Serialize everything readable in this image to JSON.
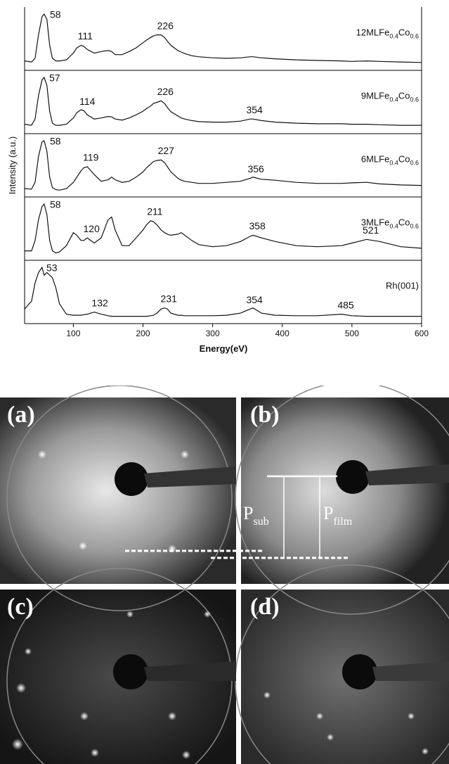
{
  "chart_data": {
    "type": "line",
    "xlabel": "Energy(eV)",
    "ylabel": "Intensity (a.u.)",
    "xlim": [
      30,
      600
    ],
    "xticks": [
      100,
      200,
      300,
      400,
      500,
      600
    ],
    "ylim": [
      0,
      1
    ],
    "x": [
      30,
      40,
      45,
      50,
      55,
      58,
      62,
      66,
      70,
      75,
      80,
      90,
      100,
      105,
      111,
      115,
      120,
      130,
      140,
      150,
      155,
      160,
      170,
      180,
      190,
      200,
      205,
      211,
      215,
      220,
      226,
      231,
      235,
      240,
      250,
      255,
      260,
      270,
      280,
      300,
      320,
      340,
      354,
      358,
      370,
      390,
      420,
      450,
      485,
      500,
      521,
      540,
      570,
      600
    ],
    "color": "#111111",
    "series": [
      {
        "name": [
          "12MLFe",
          "0.4",
          "Co",
          "0.6"
        ],
        "peaks": [
          58,
          111,
          226
        ],
        "values": [
          0.1,
          0.08,
          0.15,
          0.6,
          0.95,
          1.0,
          0.9,
          0.4,
          0.15,
          0.1,
          0.1,
          0.12,
          0.25,
          0.35,
          0.4,
          0.38,
          0.32,
          0.25,
          0.28,
          0.3,
          0.28,
          0.22,
          0.22,
          0.28,
          0.35,
          0.45,
          0.5,
          0.55,
          0.58,
          0.6,
          0.6,
          0.55,
          0.48,
          0.4,
          0.3,
          0.27,
          0.24,
          0.2,
          0.18,
          0.16,
          0.15,
          0.16,
          0.18,
          0.18,
          0.16,
          0.14,
          0.12,
          0.11,
          0.1,
          0.09,
          0.1,
          0.09,
          0.08,
          0.07
        ]
      },
      {
        "name": [
          "9MLFe",
          "0.4",
          "Co",
          "0.6"
        ],
        "peaks": [
          57,
          114,
          226,
          354
        ],
        "values": [
          0.1,
          0.08,
          0.2,
          0.65,
          0.95,
          1.0,
          0.85,
          0.35,
          0.12,
          0.08,
          0.08,
          0.1,
          0.22,
          0.32,
          0.38,
          0.36,
          0.28,
          0.2,
          0.22,
          0.25,
          0.24,
          0.2,
          0.18,
          0.22,
          0.28,
          0.35,
          0.4,
          0.45,
          0.5,
          0.52,
          0.55,
          0.5,
          0.42,
          0.34,
          0.26,
          0.22,
          0.2,
          0.17,
          0.15,
          0.14,
          0.14,
          0.16,
          0.2,
          0.2,
          0.17,
          0.14,
          0.12,
          0.11,
          0.11,
          0.1,
          0.1,
          0.09,
          0.08,
          0.08
        ]
      },
      {
        "name": [
          "6MLFe",
          "0.4",
          "Co",
          "0.6"
        ],
        "peaks": [
          58,
          119,
          227,
          356
        ],
        "values": [
          0.08,
          0.07,
          0.2,
          0.7,
          0.98,
          1.0,
          0.8,
          0.3,
          0.1,
          0.06,
          0.05,
          0.08,
          0.2,
          0.3,
          0.42,
          0.48,
          0.5,
          0.35,
          0.22,
          0.25,
          0.3,
          0.25,
          0.2,
          0.22,
          0.3,
          0.4,
          0.48,
          0.55,
          0.6,
          0.62,
          0.63,
          0.58,
          0.5,
          0.4,
          0.28,
          0.24,
          0.22,
          0.2,
          0.18,
          0.18,
          0.2,
          0.22,
          0.28,
          0.3,
          0.26,
          0.24,
          0.2,
          0.18,
          0.18,
          0.19,
          0.2,
          0.17,
          0.15,
          0.14
        ]
      },
      {
        "name": [
          "3MLFe",
          "0.4",
          "Co",
          "0.6"
        ],
        "peaks": [
          58,
          120,
          211,
          358,
          521
        ],
        "values": [
          0.1,
          0.1,
          0.3,
          0.7,
          0.95,
          1.0,
          0.8,
          0.3,
          0.1,
          0.06,
          0.08,
          0.2,
          0.45,
          0.4,
          0.3,
          0.3,
          0.35,
          0.25,
          0.35,
          0.7,
          0.75,
          0.5,
          0.2,
          0.2,
          0.35,
          0.5,
          0.6,
          0.68,
          0.66,
          0.6,
          0.5,
          0.45,
          0.42,
          0.4,
          0.42,
          0.45,
          0.4,
          0.3,
          0.22,
          0.18,
          0.2,
          0.28,
          0.38,
          0.4,
          0.35,
          0.28,
          0.2,
          0.18,
          0.2,
          0.25,
          0.32,
          0.28,
          0.18,
          0.15
        ]
      },
      {
        "name": [
          "Rh(001)"
        ],
        "peaks": [
          53,
          132,
          231,
          354,
          485
        ],
        "values": [
          0.2,
          0.35,
          0.7,
          0.9,
          1.0,
          0.85,
          0.9,
          0.85,
          0.8,
          0.6,
          0.3,
          0.1,
          0.08,
          0.08,
          0.08,
          0.09,
          0.1,
          0.14,
          0.1,
          0.07,
          0.06,
          0.06,
          0.06,
          0.06,
          0.06,
          0.06,
          0.06,
          0.07,
          0.08,
          0.12,
          0.2,
          0.22,
          0.2,
          0.12,
          0.08,
          0.08,
          0.07,
          0.07,
          0.07,
          0.07,
          0.08,
          0.12,
          0.2,
          0.22,
          0.12,
          0.08,
          0.07,
          0.07,
          0.1,
          0.07,
          0.06,
          0.06,
          0.06,
          0.06
        ]
      }
    ]
  },
  "leed": {
    "panels": [
      "(a)",
      "(b)",
      "(c)",
      "(d)"
    ],
    "p_sub": [
      "P",
      "sub"
    ],
    "p_film": [
      "P",
      "film"
    ]
  }
}
